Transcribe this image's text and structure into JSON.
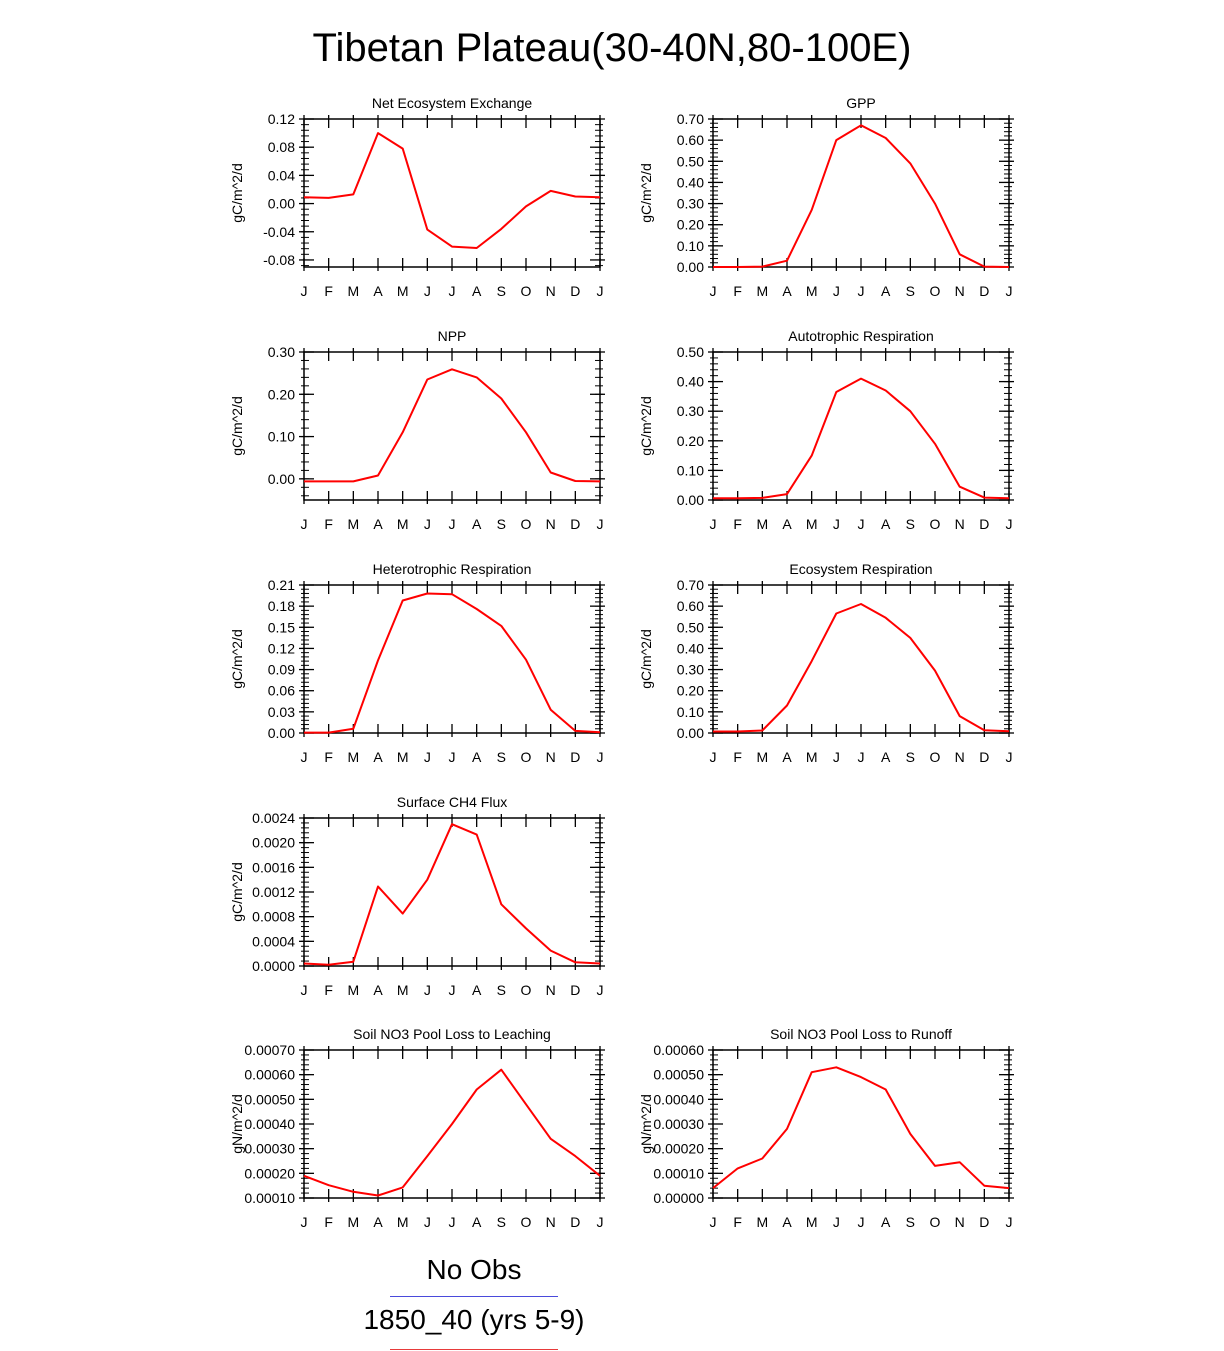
{
  "page_title": "Tibetan Plateau(30-40N,80-100E)",
  "legend": {
    "items": [
      {
        "label": "No Obs",
        "color": "#4a4adb"
      },
      {
        "label": "1850_40 (yrs 5-9)",
        "color": "#e83a3a"
      }
    ]
  },
  "chart_data": [
    {
      "type": "line",
      "title": "Net Ecosystem Exchange",
      "ylabel": "gC/m^2/d",
      "x": [
        "J",
        "F",
        "M",
        "A",
        "M",
        "J",
        "J",
        "A",
        "S",
        "O",
        "N",
        "D",
        "J"
      ],
      "ylim": [
        -0.09,
        0.12
      ],
      "yticks": [
        "-0.08",
        "-0.04",
        "0.00",
        "0.04",
        "0.08",
        "0.12"
      ],
      "ytick_values": [
        -0.08,
        -0.04,
        0.0,
        0.04,
        0.08,
        0.12
      ],
      "series": [
        {
          "color": "#ff0000",
          "values": [
            0.009,
            0.008,
            0.013,
            0.1,
            0.078,
            -0.037,
            -0.061,
            -0.063,
            -0.036,
            -0.004,
            0.018,
            0.01,
            0.009
          ]
        }
      ]
    },
    {
      "type": "line",
      "title": "GPP",
      "ylabel": "gC/m^2/d",
      "x": [
        "J",
        "F",
        "M",
        "A",
        "M",
        "J",
        "J",
        "A",
        "S",
        "O",
        "N",
        "D",
        "J"
      ],
      "ylim": [
        0.0,
        0.7
      ],
      "yticks": [
        "0.00",
        "0.10",
        "0.20",
        "0.30",
        "0.40",
        "0.50",
        "0.60",
        "0.70"
      ],
      "ytick_values": [
        0,
        0.1,
        0.2,
        0.3,
        0.4,
        0.5,
        0.6,
        0.7
      ],
      "series": [
        {
          "color": "#ff0000",
          "values": [
            0.0,
            0.0,
            0.002,
            0.03,
            0.27,
            0.6,
            0.67,
            0.61,
            0.49,
            0.3,
            0.06,
            0.002,
            0.0
          ]
        }
      ]
    },
    {
      "type": "line",
      "title": "NPP",
      "ylabel": "gC/m^2/d",
      "x": [
        "J",
        "F",
        "M",
        "A",
        "M",
        "J",
        "J",
        "A",
        "S",
        "O",
        "N",
        "D",
        "J"
      ],
      "ylim": [
        -0.05,
        0.3
      ],
      "yticks": [
        "0.00",
        "0.10",
        "0.20",
        "0.30"
      ],
      "ytick_values": [
        0.0,
        0.1,
        0.2,
        0.3
      ],
      "series": [
        {
          "color": "#ff0000",
          "values": [
            -0.006,
            -0.006,
            -0.006,
            0.008,
            0.11,
            0.235,
            0.259,
            0.24,
            0.19,
            0.11,
            0.015,
            -0.005,
            -0.006
          ]
        }
      ]
    },
    {
      "type": "line",
      "title": "Autotrophic Respiration",
      "ylabel": "gC/m^2/d",
      "x": [
        "J",
        "F",
        "M",
        "A",
        "M",
        "J",
        "J",
        "A",
        "S",
        "O",
        "N",
        "D",
        "J"
      ],
      "ylim": [
        0.0,
        0.5
      ],
      "yticks": [
        "0.00",
        "0.10",
        "0.20",
        "0.30",
        "0.40",
        "0.50"
      ],
      "ytick_values": [
        0,
        0.1,
        0.2,
        0.3,
        0.4,
        0.5
      ],
      "series": [
        {
          "color": "#ff0000",
          "values": [
            0.006,
            0.006,
            0.007,
            0.02,
            0.15,
            0.365,
            0.41,
            0.37,
            0.3,
            0.19,
            0.045,
            0.008,
            0.006
          ]
        }
      ]
    },
    {
      "type": "line",
      "title": "Heterotrophic Respiration",
      "ylabel": "gC/m^2/d",
      "x": [
        "J",
        "F",
        "M",
        "A",
        "M",
        "J",
        "J",
        "A",
        "S",
        "O",
        "N",
        "D",
        "J"
      ],
      "ylim": [
        0.0,
        0.21
      ],
      "yticks": [
        "0.00",
        "0.03",
        "0.06",
        "0.09",
        "0.12",
        "0.15",
        "0.18",
        "0.21"
      ],
      "ytick_values": [
        0,
        0.03,
        0.06,
        0.09,
        0.12,
        0.15,
        0.18,
        0.21
      ],
      "series": [
        {
          "color": "#ff0000",
          "values": [
            0.0005,
            0.0005,
            0.006,
            0.103,
            0.188,
            0.198,
            0.197,
            0.176,
            0.152,
            0.104,
            0.033,
            0.003,
            0.001
          ]
        }
      ]
    },
    {
      "type": "line",
      "title": "Ecosystem Respiration",
      "ylabel": "gC/m^2/d",
      "x": [
        "J",
        "F",
        "M",
        "A",
        "M",
        "J",
        "J",
        "A",
        "S",
        "O",
        "N",
        "D",
        "J"
      ],
      "ylim": [
        0.0,
        0.7
      ],
      "yticks": [
        "0.00",
        "0.10",
        "0.20",
        "0.30",
        "0.40",
        "0.50",
        "0.60",
        "0.70"
      ],
      "ytick_values": [
        0,
        0.1,
        0.2,
        0.3,
        0.4,
        0.5,
        0.6,
        0.7
      ],
      "series": [
        {
          "color": "#ff0000",
          "values": [
            0.007,
            0.007,
            0.012,
            0.13,
            0.34,
            0.565,
            0.61,
            0.545,
            0.45,
            0.295,
            0.08,
            0.013,
            0.008
          ]
        }
      ]
    },
    {
      "type": "line",
      "title": "Surface CH4 Flux",
      "ylabel": "gC/m^2/d",
      "x": [
        "J",
        "F",
        "M",
        "A",
        "M",
        "J",
        "J",
        "A",
        "S",
        "O",
        "N",
        "D",
        "J"
      ],
      "ylim": [
        0.0,
        0.0024
      ],
      "yticks": [
        "0.0000",
        "0.0004",
        "0.0008",
        "0.0012",
        "0.0016",
        "0.0020",
        "0.0024"
      ],
      "ytick_values": [
        0,
        0.0004,
        0.0008,
        0.0012,
        0.0016,
        0.002,
        0.0024
      ],
      "series": [
        {
          "color": "#ff0000",
          "values": [
            4e-05,
            2e-05,
            7e-05,
            0.00129,
            0.00085,
            0.0014,
            0.0023,
            0.00213,
            0.001,
            0.00061,
            0.00025,
            6e-05,
            4e-05
          ]
        }
      ]
    },
    {
      "type": "line",
      "title": "Soil NO3 Pool Loss to Leaching",
      "ylabel": "gN/m^2/d",
      "x": [
        "J",
        "F",
        "M",
        "A",
        "M",
        "J",
        "J",
        "A",
        "S",
        "O",
        "N",
        "D",
        "J"
      ],
      "ylim": [
        0.0001,
        0.0007
      ],
      "yticks": [
        "0.00010",
        "0.00020",
        "0.00030",
        "0.00040",
        "0.00050",
        "0.00060",
        "0.00070"
      ],
      "ytick_values": [
        0.0001,
        0.0002,
        0.0003,
        0.0004,
        0.0005,
        0.0006,
        0.0007
      ],
      "series": [
        {
          "color": "#ff0000",
          "values": [
            0.00019,
            0.000152,
            0.000125,
            0.00011,
            0.000143,
            0.00027,
            0.0004,
            0.00054,
            0.00062,
            0.00048,
            0.00034,
            0.00027,
            0.00019
          ]
        }
      ]
    },
    {
      "type": "line",
      "title": "Soil NO3 Pool Loss to Runoff",
      "ylabel": "gN/m^2/d",
      "x": [
        "J",
        "F",
        "M",
        "A",
        "M",
        "J",
        "J",
        "A",
        "S",
        "O",
        "N",
        "D",
        "J"
      ],
      "ylim": [
        0.0,
        0.0006
      ],
      "yticks": [
        "0.00000",
        "0.00010",
        "0.00020",
        "0.00030",
        "0.00040",
        "0.00050",
        "0.00060"
      ],
      "ytick_values": [
        0,
        0.0001,
        0.0002,
        0.0003,
        0.0004,
        0.0005,
        0.0006
      ],
      "series": [
        {
          "color": "#ff0000",
          "values": [
            4e-05,
            0.00012,
            0.00016,
            0.00028,
            0.00051,
            0.00053,
            0.00049,
            0.00044,
            0.00026,
            0.00013,
            0.000145,
            5e-05,
            4e-05
          ]
        }
      ]
    }
  ]
}
